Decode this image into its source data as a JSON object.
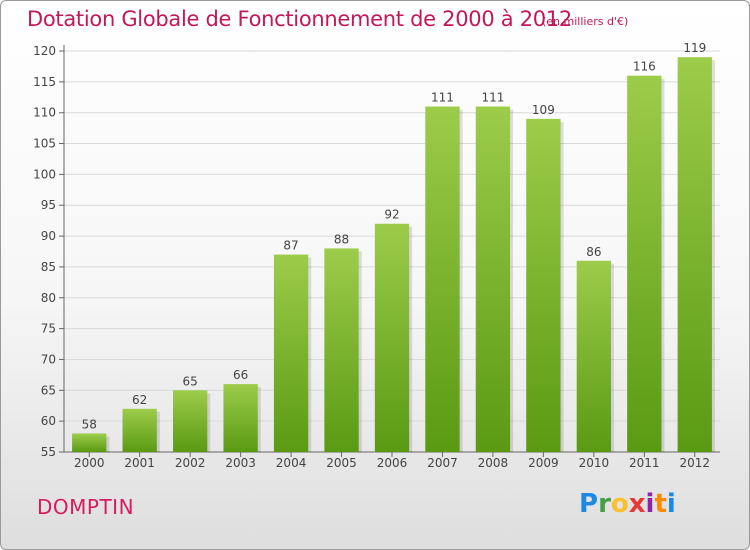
{
  "header": {
    "title": "Dotation Globale de Fonctionnement de 2000 à 2012",
    "subtitle": "(en milliers d'€)"
  },
  "footer": {
    "commune": "DOMPTIN",
    "logo": "Proxiti"
  },
  "colors": {
    "title": "#c2185b",
    "bar_top": "#9ccc4a",
    "bar_bottom": "#5a9a12",
    "grid": "#d9d9d9",
    "axis": "#666666"
  },
  "chart_data": {
    "type": "bar",
    "categories": [
      "2000",
      "2001",
      "2002",
      "2003",
      "2004",
      "2005",
      "2006",
      "2007",
      "2008",
      "2009",
      "2010",
      "2011",
      "2012"
    ],
    "values": [
      58,
      62,
      65,
      66,
      87,
      88,
      92,
      111,
      111,
      109,
      86,
      116,
      119
    ],
    "title": "Dotation Globale de Fonctionnement de 2000 à 2012",
    "subtitle": "(en milliers d'€)",
    "ylim": [
      55,
      120
    ],
    "yticks": [
      55,
      60,
      65,
      70,
      75,
      80,
      85,
      90,
      95,
      100,
      105,
      110,
      115,
      120
    ],
    "grid": true,
    "data_labels": true
  }
}
